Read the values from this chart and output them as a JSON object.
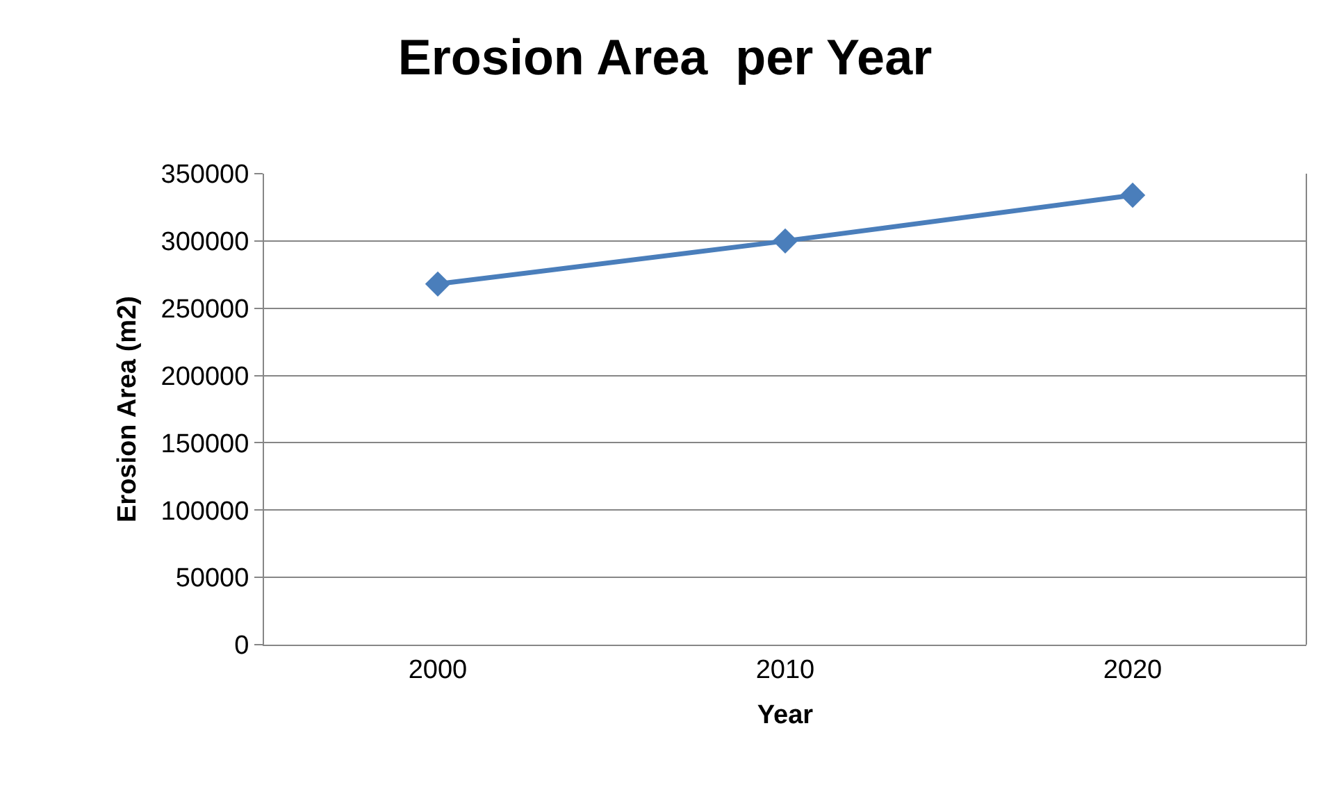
{
  "chart_data": {
    "type": "line",
    "title": "Erosion Area  per Year",
    "xlabel": "Year",
    "ylabel": "Erosion Area (m2)",
    "categories": [
      "2000",
      "2010",
      "2020"
    ],
    "series": [
      {
        "color": "#4a7ebb",
        "values": [
          268000,
          300000,
          334000
        ]
      }
    ],
    "ylim": [
      0,
      350000
    ],
    "yticks": [
      0,
      50000,
      100000,
      150000,
      200000,
      250000,
      300000,
      350000
    ],
    "grid": "y",
    "marker": "diamond",
    "line_style": "solid"
  }
}
